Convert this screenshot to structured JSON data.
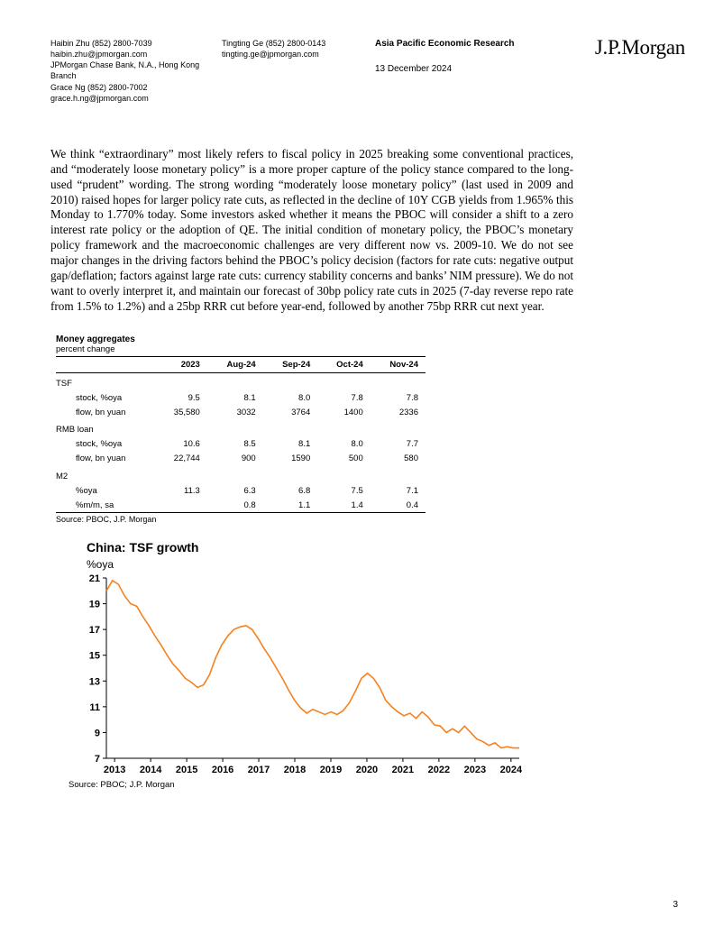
{
  "header": {
    "col1": {
      "l1": "Haibin Zhu   (852) 2800-7039",
      "l2": "haibin.zhu@jpmorgan.com",
      "l3": "JPMorgan Chase Bank, N.A., Hong Kong Branch",
      "l4": "Grace Ng  (852) 2800-7002",
      "l5": "grace.h.ng@jpmorgan.com"
    },
    "col2": {
      "l1": "Tingting Ge  (852) 2800-0143",
      "l2": "tingting.ge@jpmorgan.com"
    },
    "col3": {
      "title": "Asia Pacific Economic Research",
      "date": "13 December 2024"
    },
    "logo": "J.P.Morgan"
  },
  "body": {
    "p1": "We think   “extraordinary” most likely refers to fiscal policy in 2025 breaking some conventional practices, and “moderately loose monetary policy” is a more proper capture of the policy stance compared to the long-used “prudent” wording. The strong wording “moderately loose monetary policy” (last used in 2009 and 2010) raised hopes for larger policy rate cuts, as reflected in the decline of 10Y CGB yields from 1.965% this Monday to 1.770% today. Some investors asked whether it means the PBOC will consider a shift to a zero interest rate policy or the adoption of QE. The initial condition of monetary policy, the PBOC’s monetary policy framework and the macroeconomic challenges are very different now vs. 2009-10. We do not see major changes in the driving factors behind the PBOC’s policy decision (factors for rate cuts: negative output gap/deflation; factors against large rate cuts: currency stability concerns and banks’ NIM pressure). We do not want to overly interpret it, and maintain our forecast of 30bp policy rate cuts in 2025 (7-day reverse repo rate from 1.5% to 1.2%) and a 25bp RRR cut before year-end, followed by another 75bp RRR cut next year."
  },
  "table": {
    "title": "Money aggregates",
    "subtitle": "percent change",
    "columns": [
      "",
      "2023",
      "Aug-24",
      "Sep-24",
      "Oct-24",
      "Nov-24"
    ],
    "groups": [
      {
        "name": "TSF",
        "rows": [
          {
            "lbl": "stock, %oya",
            "v": [
              "9.5",
              "8.1",
              "8.0",
              "7.8",
              "7.8"
            ]
          },
          {
            "lbl": "flow, bn yuan",
            "v": [
              "35,580",
              "3032",
              "3764",
              "1400",
              "2336"
            ]
          }
        ]
      },
      {
        "name": "RMB loan",
        "rows": [
          {
            "lbl": "stock, %oya",
            "v": [
              "10.6",
              "8.5",
              "8.1",
              "8.0",
              "7.7"
            ]
          },
          {
            "lbl": "flow, bn yuan",
            "v": [
              "22,744",
              "900",
              "1590",
              "500",
              "580"
            ]
          }
        ]
      },
      {
        "name": "M2",
        "rows": [
          {
            "lbl": "%oya",
            "v": [
              "11.3",
              "6.3",
              "6.8",
              "7.5",
              "7.1"
            ]
          },
          {
            "lbl": "%m/m, sa",
            "v": [
              "",
              "0.8",
              "1.1",
              "1.4",
              "0.4"
            ]
          }
        ]
      }
    ],
    "source": "Source: PBOC, J.P. Morgan"
  },
  "chart": {
    "title": "China: TSF growth",
    "unit": "%oya",
    "type": "line",
    "x_labels": [
      "2013",
      "2014",
      "2015",
      "2016",
      "2017",
      "2018",
      "2019",
      "2020",
      "2021",
      "2022",
      "2023",
      "2024"
    ],
    "y_ticks": [
      7,
      9,
      11,
      13,
      15,
      17,
      19,
      21
    ],
    "ylim": [
      7,
      21
    ],
    "line_color": "#f58220",
    "axis_color": "#000000",
    "background_color": "#ffffff",
    "line_width": 1.6,
    "title_fontsize": 14,
    "axis_fontsize": 11,
    "series": [
      20.0,
      20.8,
      20.5,
      19.6,
      19.0,
      18.8,
      18.0,
      17.3,
      16.5,
      15.8,
      15.0,
      14.3,
      13.8,
      13.2,
      12.9,
      12.5,
      12.7,
      13.5,
      14.8,
      15.8,
      16.5,
      17.0,
      17.2,
      17.3,
      17.0,
      16.3,
      15.5,
      14.8,
      14.0,
      13.2,
      12.3,
      11.5,
      10.9,
      10.5,
      10.8,
      10.6,
      10.4,
      10.6,
      10.4,
      10.7,
      11.3,
      12.2,
      13.2,
      13.6,
      13.2,
      12.5,
      11.5,
      11.0,
      10.6,
      10.3,
      10.5,
      10.1,
      10.6,
      10.2,
      9.6,
      9.5,
      9.0,
      9.3,
      9.0,
      9.5,
      9.0,
      8.5,
      8.3,
      8.0,
      8.2,
      7.8,
      7.9,
      7.8,
      7.8
    ],
    "source": "Source: PBOC; J.P. Morgan"
  },
  "page": "3"
}
